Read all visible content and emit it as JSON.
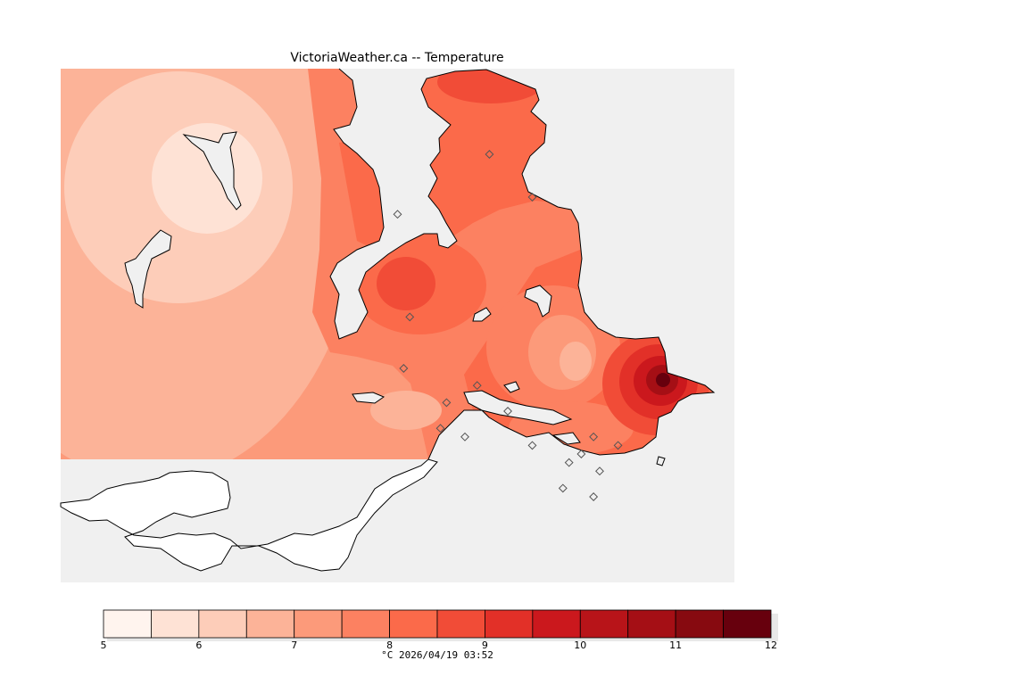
{
  "title": "VictoriaWeather.ca -- Temperature",
  "caption": "°C  2026/04/19 03:52",
  "colors": {
    "ocean": "#f0f0f0",
    "us_land": "#ffffff",
    "coast": "#000000",
    "station_marker": "#555555"
  },
  "legend": {
    "min": 5,
    "max": 12,
    "step": 0.5,
    "tick_labels": [
      "5",
      "6",
      "7",
      "8",
      "9",
      "10",
      "11",
      "12"
    ],
    "colors": [
      "#fff4ee",
      "#fee2d5",
      "#fdcdb9",
      "#fcb398",
      "#fc9a7a",
      "#fc8161",
      "#fb6a4a",
      "#f14c37",
      "#e23028",
      "#cb181d",
      "#b81419",
      "#a50f15",
      "#870a10",
      "#67000d"
    ]
  },
  "stations": [
    {
      "lon": -123.45,
      "lat": 48.75
    },
    {
      "lon": -123.38,
      "lat": 48.7
    },
    {
      "lon": -123.6,
      "lat": 48.68
    },
    {
      "lon": -123.58,
      "lat": 48.56
    },
    {
      "lon": -123.59,
      "lat": 48.5
    },
    {
      "lon": -123.47,
      "lat": 48.48
    },
    {
      "lon": -123.52,
      "lat": 48.46
    },
    {
      "lon": -123.53,
      "lat": 48.43
    },
    {
      "lon": -123.49,
      "lat": 48.42
    },
    {
      "lon": -123.42,
      "lat": 48.45
    },
    {
      "lon": -123.38,
      "lat": 48.41
    },
    {
      "lon": -123.33,
      "lat": 48.36
    },
    {
      "lon": -123.28,
      "lat": 48.42
    },
    {
      "lon": -123.3,
      "lat": 48.4
    },
    {
      "lon": -123.32,
      "lat": 48.39
    },
    {
      "lon": -123.24,
      "lat": 48.41
    },
    {
      "lon": -123.27,
      "lat": 48.38
    },
    {
      "lon": -123.28,
      "lat": 48.35
    }
  ]
}
